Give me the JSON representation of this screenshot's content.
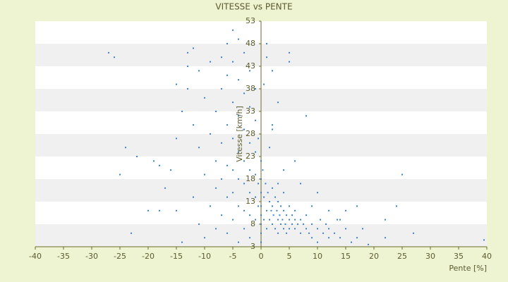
{
  "chart_data": {
    "type": "scatter",
    "title": "VITESSE vs PENTE",
    "x_label": "Pente [%]",
    "y_label": "Vitesse [km/h]",
    "x": [
      -27,
      -26,
      -24,
      -25,
      -23,
      -22,
      -20,
      -19,
      -18,
      -18,
      -17,
      -16,
      -15,
      -15,
      -15,
      -14,
      -14,
      -13,
      -13,
      -13,
      -12,
      -12,
      -12,
      -11,
      -11,
      -11,
      -10,
      -10,
      -10,
      -9,
      -9,
      -9,
      -8,
      -8,
      -8,
      -8,
      -7,
      -7,
      -7,
      -7,
      -7,
      -6,
      -6,
      -6,
      -6,
      -6,
      -6,
      -5,
      -5,
      -5,
      -5,
      -5,
      -5,
      -5,
      -4,
      -4,
      -4,
      -4,
      -4,
      -4,
      -4,
      -3,
      -3,
      -3,
      -3,
      -3,
      -3,
      -3,
      -2,
      -2,
      -2,
      -2,
      -2,
      -2,
      -2,
      -1,
      -1,
      -1,
      -1,
      -1,
      -1,
      -0.5,
      -0.5,
      -0.5,
      0.3,
      0.5,
      0.5,
      0.8,
      1,
      1,
      1.2,
      1.5,
      1.5,
      1.8,
      2,
      2,
      2,
      2.2,
      2.5,
      2.5,
      2.8,
      3,
      3,
      3,
      3.3,
      3.5,
      3.5,
      3.8,
      4,
      4,
      4,
      4.3,
      4.5,
      4.5,
      5,
      5,
      5,
      5.5,
      5.5,
      6,
      6,
      6,
      6.5,
      7,
      7,
      7.5,
      8,
      8,
      8.5,
      9,
      9,
      10,
      10,
      10.5,
      11,
      11.5,
      12,
      12,
      13,
      13.5,
      14,
      15,
      15,
      16,
      17,
      17,
      18,
      19,
      22,
      22,
      24,
      25,
      27,
      39.5,
      1,
      2,
      5,
      5,
      8,
      3,
      2,
      1.5,
      6,
      4,
      0.5,
      1,
      2,
      3,
      7,
      10,
      9,
      12,
      14,
      0,
      0,
      0,
      0,
      0,
      0,
      0,
      0
    ],
    "values": [
      46,
      45,
      25,
      19,
      6,
      23,
      11,
      22,
      11,
      21,
      16,
      20,
      11,
      39,
      27,
      4,
      33,
      46,
      43,
      38,
      47,
      30,
      14,
      25,
      8,
      42,
      19,
      36,
      5,
      44,
      28,
      12,
      22,
      33,
      16,
      7,
      45,
      38,
      26,
      18,
      10,
      48,
      41,
      30,
      21,
      14,
      6,
      51,
      44,
      35,
      27,
      20,
      15,
      9,
      49,
      40,
      32,
      24,
      18,
      12,
      4,
      46,
      37,
      29,
      22,
      17,
      11,
      7,
      42,
      34,
      26,
      20,
      15,
      10,
      5,
      38,
      31,
      24,
      19,
      14,
      9,
      27,
      17,
      12,
      20,
      14,
      9,
      17,
      11,
      7,
      15,
      13,
      9,
      11,
      16,
      12,
      8,
      10,
      14,
      7,
      11,
      9,
      13,
      6,
      10,
      12,
      8,
      9,
      11,
      7,
      15,
      8,
      10,
      6,
      9,
      12,
      7,
      8,
      10,
      7,
      11,
      9,
      8,
      9,
      6,
      8,
      7,
      10,
      6,
      8,
      5,
      7,
      4,
      9,
      6,
      8,
      7,
      5,
      6,
      9,
      5,
      7,
      11,
      4,
      12,
      5,
      7,
      3.5,
      5,
      9,
      12,
      19,
      6,
      4.5,
      45,
      42,
      46,
      44,
      32,
      35,
      30,
      25,
      22,
      20,
      39,
      48,
      29,
      17,
      17,
      15,
      12,
      11,
      9,
      4,
      6,
      8,
      10,
      12,
      15,
      18,
      22
    ],
    "color": "#3a80d6",
    "xlim": [
      -40,
      40
    ],
    "ylim": [
      3,
      53
    ],
    "xticks": [
      -40,
      -35,
      -30,
      -25,
      -20,
      -15,
      -10,
      -5,
      0,
      5,
      10,
      15,
      20,
      25,
      30,
      35,
      40
    ],
    "yticks": [
      3,
      8,
      13,
      18,
      23,
      28,
      33,
      38,
      43,
      48,
      53
    ],
    "grid": true
  }
}
